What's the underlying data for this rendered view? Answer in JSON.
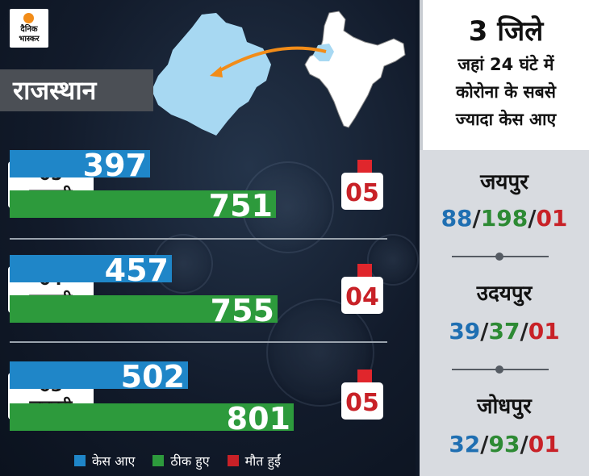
{
  "logo": {
    "line1": "दैनिक",
    "line2": "भास्कर"
  },
  "state": "राजस्थान",
  "colors": {
    "cases": "#1f86c8",
    "recovered": "#2d9a3c",
    "deaths": "#c82127"
  },
  "chart_data": {
    "type": "bar",
    "categories": [
      {
        "day": "05",
        "month": "जनवरी"
      },
      {
        "day": "04",
        "month": "जनवरी"
      },
      {
        "day": "03",
        "month": "जनवरी"
      }
    ],
    "series": [
      {
        "name": "केस आए",
        "values": [
          397,
          457,
          502
        ]
      },
      {
        "name": "ठीक हुए",
        "values": [
          751,
          755,
          801
        ]
      },
      {
        "name": "मौत हुईं",
        "values": [
          "05",
          "04",
          "05"
        ]
      }
    ],
    "legend": [
      "केस आए",
      "ठीक हुए",
      "मौत हुईं"
    ],
    "legend_position": "bottom",
    "xlim": [
      0,
      801
    ]
  },
  "panel": {
    "title": "3 जिले",
    "subtitle_lines": [
      "जहां 24 घंटे में",
      "कोरोना के सबसे",
      "ज्यादा केस आए"
    ],
    "districts": [
      {
        "name": "जयपुर",
        "cases": "88",
        "recovered": "198",
        "deaths": "01"
      },
      {
        "name": "उदयपुर",
        "cases": "39",
        "recovered": "37",
        "deaths": "01"
      },
      {
        "name": "जोधपुर",
        "cases": "32",
        "recovered": "93",
        "deaths": "01"
      }
    ],
    "separator": "/"
  }
}
